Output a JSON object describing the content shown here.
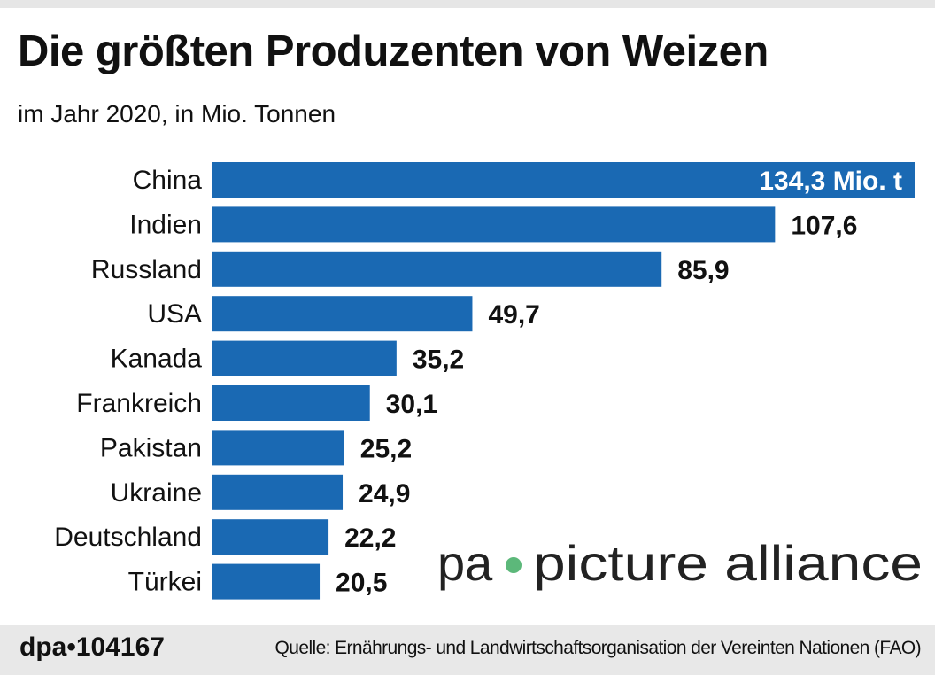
{
  "title": "Die größten Produzenten von Weizen",
  "subtitle": "im Jahr 2020, in Mio. Tonnen",
  "chart_data": {
    "type": "bar",
    "orientation": "horizontal",
    "categories": [
      "China",
      "Indien",
      "Russland",
      "USA",
      "Kanada",
      "Frankreich",
      "Pakistan",
      "Ukraine",
      "Deutschland",
      "Türkei"
    ],
    "values": [
      134.3,
      107.6,
      85.9,
      49.7,
      35.2,
      30.1,
      25.2,
      24.9,
      22.2,
      20.5
    ],
    "value_labels": [
      "134,3 Mio. t",
      "107,6",
      "85,9",
      "49,7",
      "35,2",
      "30,1",
      "25,2",
      "24,9",
      "22,2",
      "20,5"
    ],
    "xlim": [
      0,
      134.3
    ],
    "grid": false,
    "bar_color": "#1a69b3"
  },
  "watermark": {
    "text": "pa picture alliance",
    "dot_color": "#5cb87a"
  },
  "footer": {
    "id": "dpa•104167",
    "source": "Quelle: Ernährungs- und Landwirtschaftsorganisation der Vereinten Nationen (FAO)"
  }
}
